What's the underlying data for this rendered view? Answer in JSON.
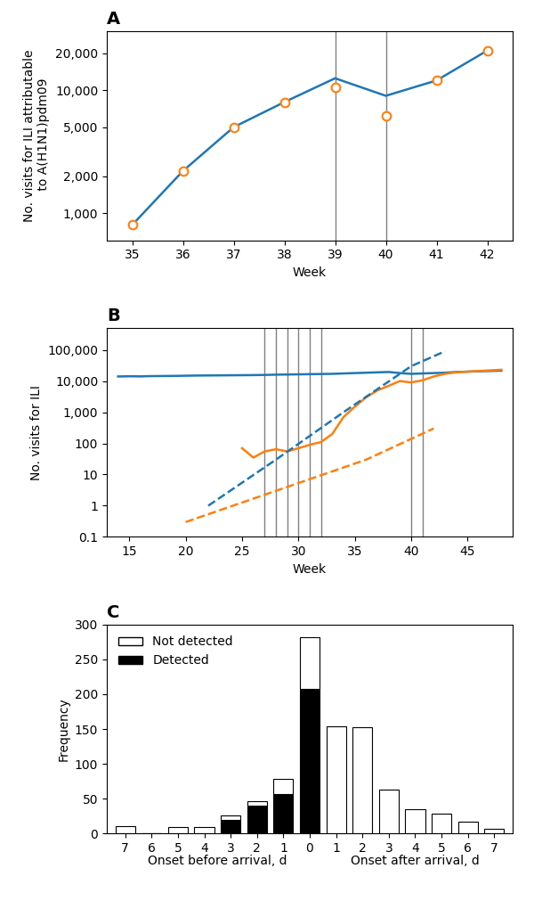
{
  "chart_data": [
    {
      "type": "line",
      "title": "A",
      "xlabel": "Week",
      "ylabel": "No. visits for ILI attributable\n to A(H1N1)pdm09",
      "log": "y",
      "xlim": [
        34.5,
        42.5
      ],
      "xticks": [
        35,
        36,
        37,
        38,
        39,
        40,
        41,
        42
      ],
      "ylim": [
        600,
        30000
      ],
      "yticks": [
        {
          "value": 1000,
          "label": "1,000"
        },
        {
          "value": 2000,
          "label": "2,000"
        },
        {
          "value": 5000,
          "label": "5,000"
        },
        {
          "value": 10000,
          "label": "10,000"
        },
        {
          "value": 20000,
          "label": "20,000"
        }
      ],
      "vlines": [
        39,
        40
      ],
      "series": [
        {
          "type": "line",
          "line_style": "solid",
          "x": [
            35,
            36,
            37,
            38,
            39,
            40,
            41,
            42
          ],
          "values": [
            800,
            2200,
            5000,
            8000,
            12500,
            9000,
            12000,
            21000
          ]
        },
        {
          "type": "scatter",
          "marker": "o",
          "x": [
            35,
            36,
            37,
            38,
            39,
            40,
            41,
            42
          ],
          "values": [
            800,
            2200,
            5000,
            8000,
            10500,
            6200,
            12000,
            21000
          ]
        }
      ]
    },
    {
      "type": "line",
      "title": "B",
      "xlabel": "Week",
      "ylabel": "No. visits for ILI",
      "log": "y",
      "xlim": [
        13,
        49
      ],
      "xticks": [
        15,
        20,
        25,
        30,
        35,
        40,
        45
      ],
      "ylim": [
        0.1,
        500000
      ],
      "yticks": [
        0.1,
        1,
        10,
        100,
        {
          "value": 1000,
          "label": "1,000"
        },
        {
          "value": 10000,
          "label": "10,000"
        },
        {
          "value": 100000,
          "label": "100,000"
        }
      ],
      "vlines": [
        27,
        28,
        29,
        30,
        31,
        32,
        40,
        41
      ],
      "series": [
        {
          "type": "line",
          "line_style": "solid",
          "color": "#1f77b4",
          "x": [
            14,
            15,
            16,
            17,
            18,
            19,
            20,
            21,
            22,
            23,
            24,
            25,
            26,
            27,
            28,
            29,
            30,
            31,
            32,
            33,
            34,
            35,
            36,
            37,
            38,
            39,
            40,
            41,
            42,
            43,
            44,
            45,
            46,
            47,
            48
          ],
          "values": [
            14000,
            14200,
            14100,
            14400,
            14500,
            14600,
            14800,
            15000,
            15100,
            15200,
            15300,
            15400,
            15500,
            15700,
            16000,
            16200,
            16400,
            16600,
            16800,
            17000,
            17500,
            18000,
            18500,
            19000,
            19500,
            18000,
            17000,
            17500,
            18000,
            18500,
            19500,
            20000,
            20500,
            21000,
            21500
          ]
        },
        {
          "type": "line",
          "line_style": "solid",
          "color": "#ff7f0e",
          "x": [
            25,
            26,
            27,
            28,
            29,
            30,
            31,
            32,
            33,
            34,
            35,
            36,
            37,
            38,
            39,
            40,
            41,
            42,
            43,
            44,
            45,
            46,
            47,
            48
          ],
          "values": [
            70,
            35,
            55,
            65,
            55,
            70,
            90,
            110,
            200,
            700,
            1500,
            3000,
            5000,
            7000,
            10000,
            9000,
            10500,
            14000,
            17000,
            19000,
            20000,
            21000,
            22000,
            23000
          ]
        },
        {
          "type": "line",
          "line_style": "dashed",
          "color": "#1f77b4",
          "x": [
            22,
            28,
            34,
            40,
            43
          ],
          "values": [
            1,
            30,
            1000,
            30000,
            90000
          ]
        },
        {
          "type": "line",
          "line_style": "dashed",
          "color": "#ff7f0e",
          "x": [
            20,
            28,
            36,
            42
          ],
          "values": [
            0.3,
            3,
            30,
            300
          ]
        }
      ]
    },
    {
      "type": "bar",
      "title": "C",
      "stacked": true,
      "ylabel": "Frequency",
      "categories": [
        "7",
        "6",
        "5",
        "4",
        "3",
        "2",
        "1",
        "0",
        "1",
        "2",
        "3",
        "4",
        "5",
        "6",
        "7"
      ],
      "ylim": [
        0,
        300
      ],
      "yticks": [
        0,
        50,
        100,
        150,
        200,
        250,
        300
      ],
      "annotations": [
        "Onset before arrival, d",
        "Onset after arrival, d"
      ],
      "legend": "upper left",
      "series": [
        {
          "name": "Detected",
          "color": "black",
          "values": [
            0,
            0,
            0,
            0,
            20,
            40,
            57,
            207,
            0,
            0,
            0,
            0,
            0,
            0,
            0
          ]
        },
        {
          "name": "Not detected",
          "color": "white",
          "values": [
            10,
            0,
            9,
            9,
            6,
            6,
            21,
            75,
            154,
            153,
            63,
            35,
            29,
            17,
            7
          ]
        }
      ]
    }
  ]
}
